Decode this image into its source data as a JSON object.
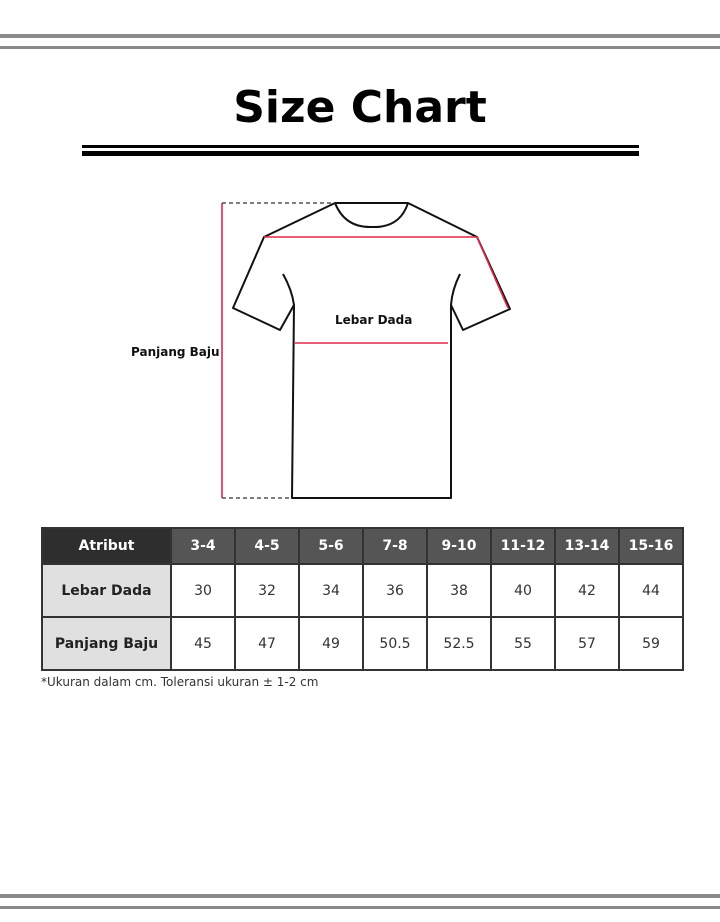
{
  "title": "Size Chart",
  "diagram": {
    "chest_label": "Lebar Dada",
    "length_label": "Panjang Baju",
    "measure_color": "#e0284a"
  },
  "table": {
    "header": [
      "Atribut",
      "3-4",
      "4-5",
      "5-6",
      "7-8",
      "9-10",
      "11-12",
      "13-14",
      "15-16"
    ],
    "rows": [
      {
        "label": "Lebar Dada",
        "values": [
          "30",
          "32",
          "34",
          "36",
          "38",
          "40",
          "42",
          "44"
        ]
      },
      {
        "label": "Panjang Baju",
        "values": [
          "45",
          "47",
          "49",
          "50.5",
          "52.5",
          "55",
          "57",
          "59"
        ]
      }
    ]
  },
  "note": "*Ukuran dalam cm. Toleransi ukuran ± 1-2 cm"
}
